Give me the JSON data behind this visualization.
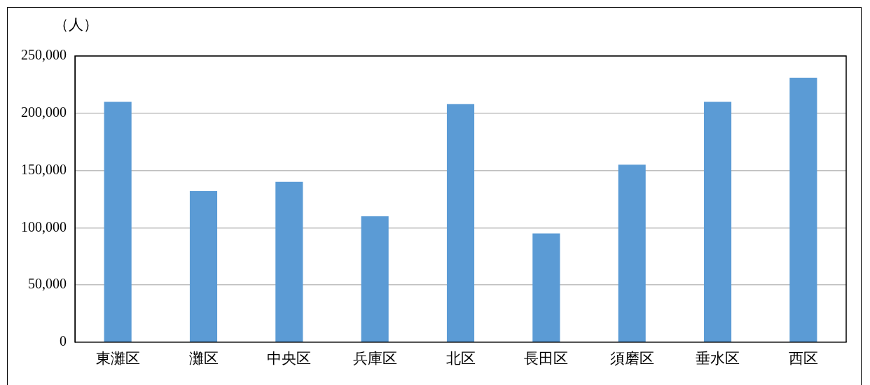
{
  "chart_data": {
    "type": "bar",
    "ylabel": "（人）",
    "categories": [
      "東灘区",
      "灘区",
      "中央区",
      "兵庫区",
      "北区",
      "長田区",
      "須磨区",
      "垂水区",
      "西区"
    ],
    "values": [
      210000,
      132000,
      140000,
      110000,
      208000,
      95000,
      155000,
      210000,
      231000
    ],
    "color": "#5b9bd5",
    "ylim": [
      0,
      250000
    ],
    "yticks": [
      {
        "value": 0,
        "label": "0"
      },
      {
        "value": 50000,
        "label": "50,000"
      },
      {
        "value": 100000,
        "label": "100,000"
      },
      {
        "value": 150000,
        "label": "150,000"
      },
      {
        "value": 200000,
        "label": "200,000"
      },
      {
        "value": 250000,
        "label": "250,000"
      }
    ],
    "grid": "y",
    "legend": false
  }
}
